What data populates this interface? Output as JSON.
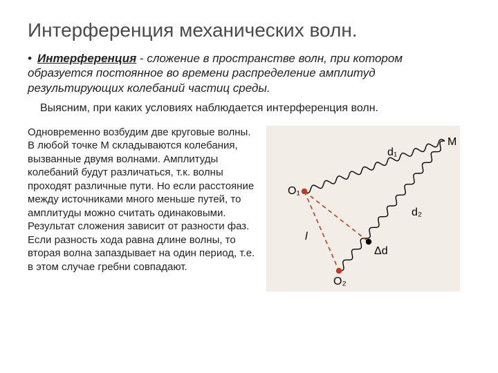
{
  "title": "Интерференция механических волн.",
  "definition": {
    "bullet": "•",
    "term": "Интерференция",
    "dash": " - ",
    "rest": "сложение в пространстве волн, при котором образуется постоянное во времени распределение амплитуд результирующих колебаний частиц среды."
  },
  "subline": "Выясним, при каких условиях наблюдается интерференция волн.",
  "body": "Одновременно возбудим две круговые волны. В любой точке M складываются колебания, вызванные двумя волнами. Амплитуды колебаний будут различаться, т.к. волны проходят различные пути. Но если расстояние между источниками много меньше путей, то амплитуды можно считать одинаковыми. Результат сложения зависит от разности фаз. Если разность хода равна длине волны, то вторая волна запаздывает на один период, т.е. в этом случае гребни совпадают.",
  "diagram": {
    "background": "#f2ede7",
    "wave_color": "#000000",
    "dashed_color": "#c33a1f",
    "point_fill": "#c33a1f",
    "black_fill": "#000000",
    "label_color": "#000000",
    "label_fontsize": 16,
    "labels": {
      "O1": "O₁",
      "O2": "O₂",
      "M": "M",
      "d1": "d₁",
      "d2": "d₂",
      "l": "l",
      "delta_d": "Δd"
    }
  }
}
